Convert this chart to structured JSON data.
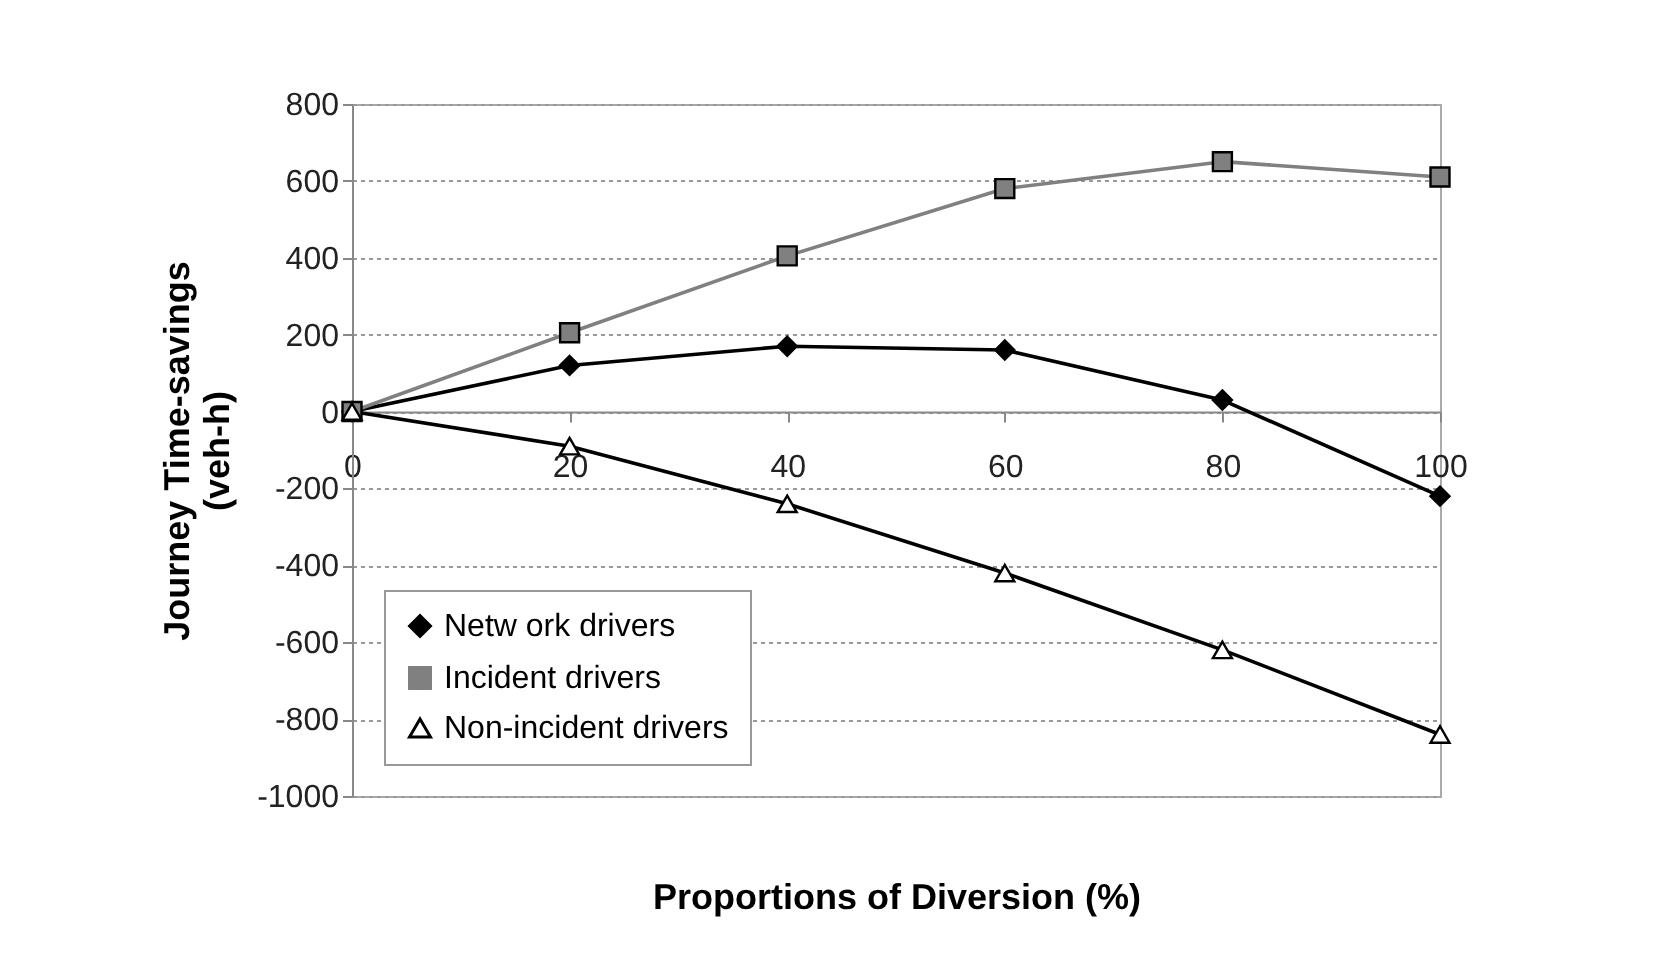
{
  "chart_data": {
    "type": "line",
    "xlabel": "Proportions of Diversion (%)",
    "ylabel": "Journey Time-savings\n(veh-h)",
    "x": [
      0,
      20,
      40,
      60,
      80,
      100
    ],
    "series": [
      {
        "name": "Netw ork drivers",
        "color": "#000000",
        "marker": "diamond",
        "values": [
          0,
          120,
          170,
          160,
          30,
          -220
        ]
      },
      {
        "name": "Incident drivers",
        "color": "#808080",
        "marker": "square",
        "values": [
          0,
          205,
          405,
          580,
          650,
          610
        ]
      },
      {
        "name": "Non-incident drivers",
        "color": "#000000",
        "marker": "triangle",
        "values": [
          0,
          -90,
          -240,
          -420,
          -620,
          -840
        ]
      }
    ],
    "xlim": [
      0,
      100
    ],
    "xticks": [
      0,
      20,
      40,
      60,
      80,
      100
    ],
    "ylim": [
      -1000,
      800
    ],
    "yticks": [
      -1000,
      -800,
      -600,
      -400,
      -200,
      0,
      200,
      400,
      600,
      800
    ],
    "grid": "y",
    "legend": "bottom left"
  }
}
